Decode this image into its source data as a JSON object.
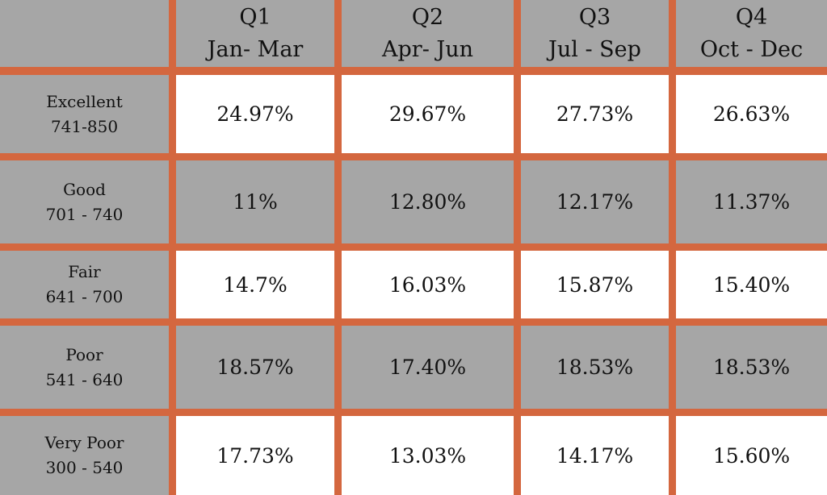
{
  "chart_data": {
    "type": "table",
    "columns": [
      {
        "quarter": "Q1",
        "months": "Jan- Mar"
      },
      {
        "quarter": "Q2",
        "months": "Apr- Jun"
      },
      {
        "quarter": "Q3",
        "months": "Jul - Sep"
      },
      {
        "quarter": "Q4",
        "months": "Oct - Dec"
      }
    ],
    "rows": [
      {
        "name": "Excellent",
        "range": "741-850",
        "values": [
          "24.97%",
          "29.67%",
          "27.73%",
          "26.63%"
        ]
      },
      {
        "name": "Good",
        "range": "701 - 740",
        "values": [
          "11%",
          "12.80%",
          "12.17%",
          "11.37%"
        ]
      },
      {
        "name": "Fair",
        "range": "641 - 700",
        "values": [
          "14.7%",
          "16.03%",
          "15.87%",
          "15.40%"
        ]
      },
      {
        "name": "Poor",
        "range": "541 - 640",
        "values": [
          "18.57%",
          "17.40%",
          "18.53%",
          "18.53%"
        ]
      },
      {
        "name": "Very Poor",
        "range": "300 - 540",
        "values": [
          "17.73%",
          "13.03%",
          "14.17%",
          "15.60%"
        ]
      }
    ]
  },
  "colors": {
    "border": "#d4673f",
    "gray_cell": "#a6a6a6",
    "white_cell": "#ffffff",
    "text": "#111111"
  }
}
